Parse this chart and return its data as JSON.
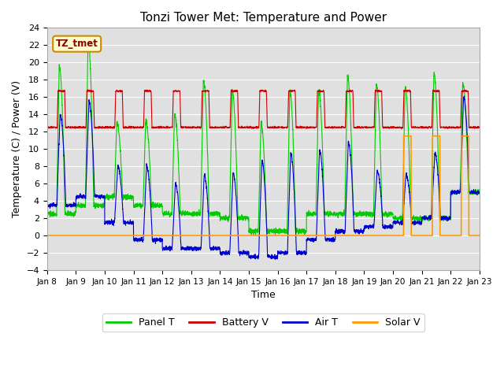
{
  "title": "Tonzi Tower Met: Temperature and Power",
  "xlabel": "Time",
  "ylabel": "Temperature (C) / Power (V)",
  "ylim": [
    -4,
    24
  ],
  "xlim": [
    0,
    15
  ],
  "x_tick_labels": [
    "Jan 8",
    "Jan 9",
    "Jan 10",
    "Jan 11",
    "Jan 12",
    "Jan 13",
    "Jan 14",
    "Jan 15",
    "Jan 16",
    "Jan 17",
    "Jan 18",
    "Jan 19",
    "Jan 20",
    "Jan 21",
    "Jan 22",
    "Jan 23"
  ],
  "yticks": [
    -4,
    -2,
    0,
    2,
    4,
    6,
    8,
    10,
    12,
    14,
    16,
    18,
    20,
    22,
    24
  ],
  "bg_color": "#e0e0e0",
  "fig_color": "#ffffff",
  "line_colors": {
    "panel_t": "#00cc00",
    "battery_v": "#cc0000",
    "air_t": "#0000cc",
    "solar_v": "#ff9900"
  },
  "label_box": "TZ_tmet",
  "legend_labels": [
    "Panel T",
    "Battery V",
    "Air T",
    "Solar V"
  ],
  "day_peaks_panel": [
    19.5,
    22.5,
    13.0,
    13.2,
    14.0,
    18.0,
    16.8,
    13.0,
    16.7,
    16.8,
    18.5,
    17.5,
    17.2,
    18.8,
    17.5
  ],
  "day_peaks_air": [
    14.0,
    15.5,
    8.0,
    8.0,
    6.0,
    7.0,
    7.2,
    8.7,
    9.5,
    9.8,
    10.8,
    7.5,
    7.0,
    9.5,
    16.0
  ],
  "night_base_panel": [
    2.5,
    3.5,
    4.5,
    3.5,
    2.5,
    2.5,
    2.0,
    0.5,
    0.5,
    2.5,
    2.5,
    2.5,
    2.0,
    2.0,
    5.0
  ],
  "night_base_air": [
    3.5,
    4.5,
    1.5,
    -0.5,
    -1.5,
    -1.5,
    -2.0,
    -2.5,
    -2.0,
    -0.5,
    0.5,
    1.0,
    1.5,
    2.0,
    5.0
  ],
  "solar_start_day": 12,
  "solar_level": 11.5
}
